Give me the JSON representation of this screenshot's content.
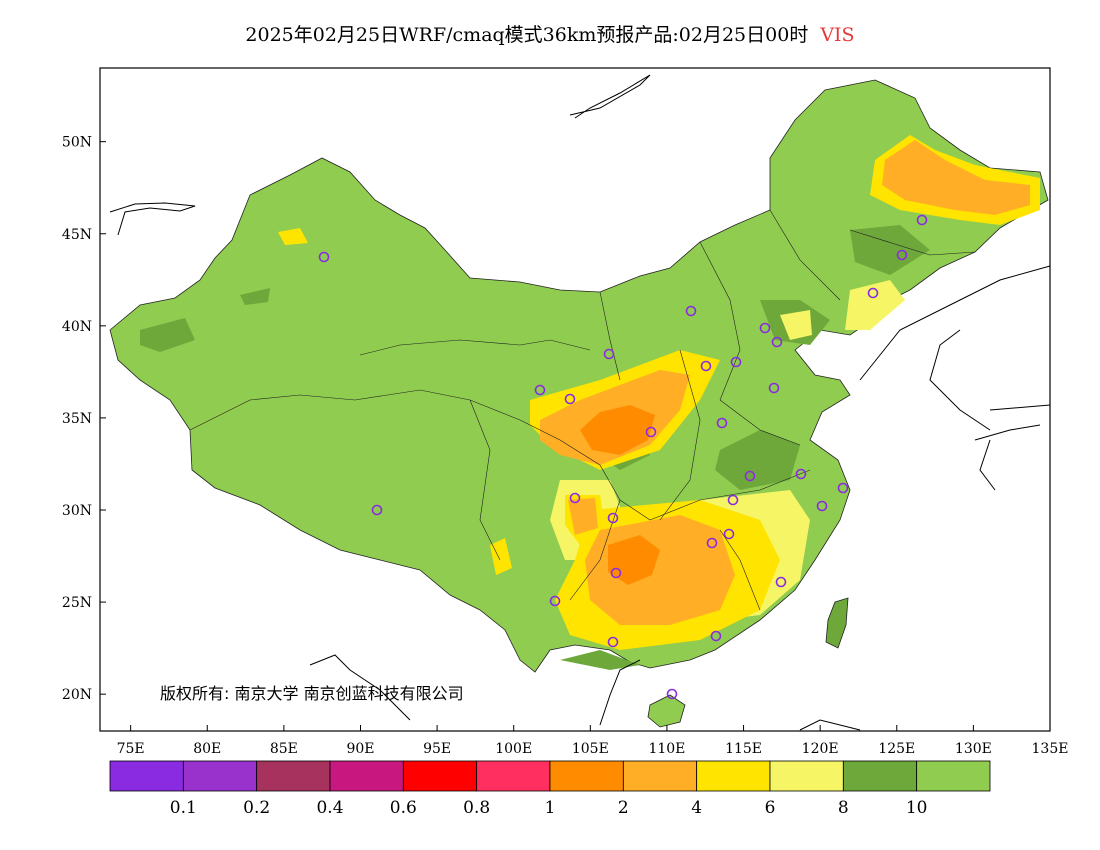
{
  "title": {
    "text": "2025年02月25日WRF/cmaq模式36km预报产品:02月25日00时",
    "variable": "VIS"
  },
  "map": {
    "lon_range": [
      73,
      135
    ],
    "lat_range": [
      18,
      54
    ],
    "x_ticks": [
      "75E",
      "80E",
      "85E",
      "90E",
      "95E",
      "100E",
      "105E",
      "110E",
      "115E",
      "120E",
      "125E",
      "130E",
      "135E"
    ],
    "y_ticks": [
      "20N",
      "25N",
      "30N",
      "35N",
      "40N",
      "45N",
      "50N"
    ],
    "copyright": "版权所有: 南京大学 南京创蓝科技有限公司"
  },
  "colorbar": {
    "colors": [
      "#8a2be2",
      "#9932cc",
      "#a8325e",
      "#c8177e",
      "#ff0000",
      "#ff3060",
      "#ff8c00",
      "#ffae26",
      "#ffe400",
      "#f5f565",
      "#6ea83a",
      "#8fcc4f"
    ],
    "labels": [
      "0.1",
      "0.2",
      "0.4",
      "0.6",
      "0.8",
      "1",
      "2",
      "4",
      "6",
      "8",
      "10"
    ]
  },
  "colors": {
    "vis_gt10": "#8fcc4f",
    "vis_8_10": "#6ea83a",
    "vis_6_8": "#f5f565",
    "vis_4_6": "#ffe400",
    "vis_2_4": "#ffae26",
    "vis_1_2": "#ff8c00",
    "station": "#8a2be2"
  }
}
